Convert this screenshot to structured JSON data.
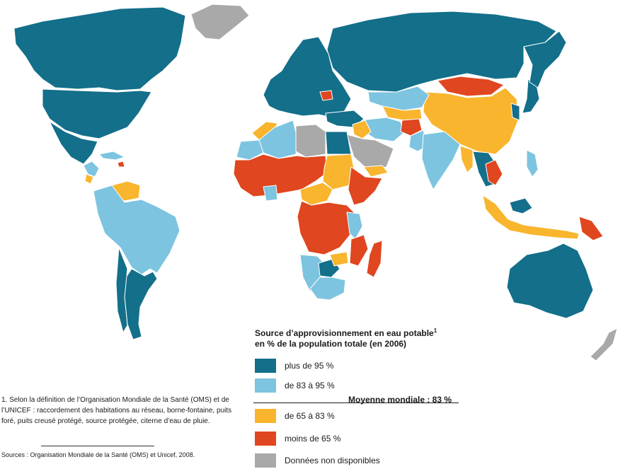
{
  "colors": {
    "above_95": "#136f8a",
    "from_83_to_95": "#7cc4e0",
    "from_65_to_83": "#f8b52d",
    "below_65": "#e0461f",
    "no_data": "#a9a9aa",
    "border": "#ffffff"
  },
  "legend": {
    "title_line1": "Source d’approvisionnement en eau potable",
    "title_sup": "1",
    "title_line2": "en % de la population totale (en 2006)",
    "items": [
      {
        "key": "above_95",
        "label": "plus de 95 %"
      },
      {
        "key": "from_83_to_95",
        "label": "de 83 à 95 %"
      },
      {
        "key": "from_65_to_83",
        "label": "de 65 à 83 %"
      },
      {
        "key": "below_65",
        "label": "moins de 65 %"
      },
      {
        "key": "no_data",
        "label": "Données non disponibles"
      }
    ],
    "world_average": "Moyenne mondiale : 83 %"
  },
  "footnote": "1. Selon la définition de l’Organisation Mondiale de la Santé (OMS) et de l’UNICEF : raccordement des habitations au réseau, borne-fontaine, puits foré, puits creusé protégé, source protégée, citerne d’eau de pluie.",
  "sources": "Sources : Organisation Mondiale de la Santé (OMS) et Unicef, 2008."
}
